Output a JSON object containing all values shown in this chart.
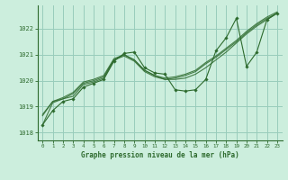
{
  "title": "Graphe pression niveau de la mer (hPa)",
  "bg_color": "#cceedd",
  "grid_color": "#99ccbb",
  "line_color": "#2d6a2d",
  "xlim": [
    -0.5,
    23.5
  ],
  "ylim": [
    1017.7,
    1022.9
  ],
  "yticks": [
    1018,
    1019,
    1020,
    1021,
    1022
  ],
  "xticks": [
    0,
    1,
    2,
    3,
    4,
    5,
    6,
    7,
    8,
    9,
    10,
    11,
    12,
    13,
    14,
    15,
    16,
    17,
    18,
    19,
    20,
    21,
    22,
    23
  ],
  "series_main": [
    1018.3,
    1018.85,
    1019.2,
    1019.3,
    1019.75,
    1019.9,
    1020.05,
    1020.75,
    1021.05,
    1021.1,
    1020.5,
    1020.3,
    1020.25,
    1019.65,
    1019.6,
    1019.65,
    1020.05,
    1021.15,
    1021.65,
    1022.4,
    1020.55,
    1021.1,
    1022.35,
    1022.6
  ],
  "series_smooth1": [
    1018.3,
    1019.15,
    1019.3,
    1019.4,
    1019.85,
    1019.95,
    1020.1,
    1020.8,
    1021.0,
    1020.8,
    1020.4,
    1020.2,
    1020.05,
    1020.05,
    1020.1,
    1020.25,
    1020.5,
    1020.8,
    1021.1,
    1021.45,
    1021.8,
    1022.1,
    1022.35,
    1022.6
  ],
  "series_smooth2": [
    1018.65,
    1019.2,
    1019.3,
    1019.5,
    1019.9,
    1020.0,
    1020.15,
    1020.8,
    1020.95,
    1020.75,
    1020.35,
    1020.15,
    1020.05,
    1020.1,
    1020.2,
    1020.35,
    1020.65,
    1020.9,
    1021.2,
    1021.5,
    1021.85,
    1022.15,
    1022.4,
    1022.6
  ],
  "series_smooth3": [
    1018.7,
    1019.2,
    1019.35,
    1019.55,
    1019.95,
    1020.05,
    1020.2,
    1020.85,
    1021.0,
    1020.8,
    1020.4,
    1020.2,
    1020.1,
    1020.15,
    1020.25,
    1020.4,
    1020.7,
    1020.95,
    1021.25,
    1021.55,
    1021.9,
    1022.2,
    1022.45,
    1022.65
  ]
}
